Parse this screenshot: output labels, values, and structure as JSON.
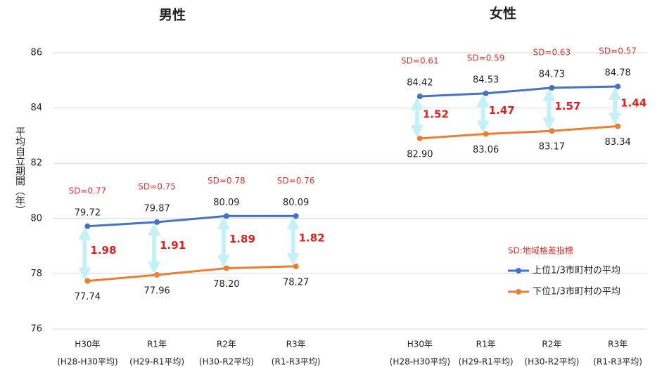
{
  "chart_data": [
    {
      "type": "line",
      "title": "男性",
      "ylabel": "平均自立期間（年）",
      "categories": [
        [
          "H30年",
          "(H28-H30平均)"
        ],
        [
          "R1年",
          "(H29-R1平均)"
        ],
        [
          "R2年",
          "(H30-R2平均)"
        ],
        [
          "R3年",
          "(R1-R3平均)"
        ]
      ],
      "series": [
        {
          "color": "#4472c4",
          "values": [
            79.72,
            79.87,
            80.09,
            80.09
          ],
          "value_labels": [
            "79.72",
            "79.87",
            "80.09",
            "80.09"
          ]
        },
        {
          "color": "#ed7d31",
          "values": [
            77.74,
            77.96,
            78.2,
            78.27
          ],
          "value_labels": [
            "77.74",
            "77.96",
            "78.20",
            "78.27"
          ]
        }
      ],
      "sd_labels": [
        "SD=0.77",
        "SD=0.75",
        "SD=0.78",
        "SD=0.76"
      ],
      "differences": [
        1.98,
        1.91,
        1.89,
        1.82
      ],
      "ylim": [
        76,
        86
      ],
      "yticks": [
        76,
        78,
        80,
        82,
        84,
        86
      ],
      "grid": true
    },
    {
      "type": "line",
      "title": "女性",
      "categories": [
        [
          "H30年",
          "(H28-H30平均)"
        ],
        [
          "R1年",
          "(H29-R1平均)"
        ],
        [
          "R2年",
          "(H30-R2平均)"
        ],
        [
          "R3年",
          "(R1-R3平均)"
        ]
      ],
      "series": [
        {
          "name": "上位1/3市町村の平均",
          "color": "#4472c4",
          "values": [
            84.42,
            84.53,
            84.73,
            84.78
          ],
          "value_labels": [
            "84.42",
            "84.53",
            "84.73",
            "84.78"
          ]
        },
        {
          "name": "下位1/3市町村の平均",
          "color": "#ed7d31",
          "values": [
            82.9,
            83.06,
            83.17,
            83.34
          ],
          "value_labels": [
            "82.90",
            "83.06",
            "83.17",
            "83.34"
          ]
        }
      ],
      "sd_labels": [
        "SD=0.61",
        "SD=0.59",
        "SD=0.63",
        "SD=0.57"
      ],
      "differences": [
        1.52,
        1.47,
        1.57,
        1.44
      ],
      "legend_title": "SD:地域格差指標",
      "ylim": [
        76,
        86
      ]
    }
  ]
}
